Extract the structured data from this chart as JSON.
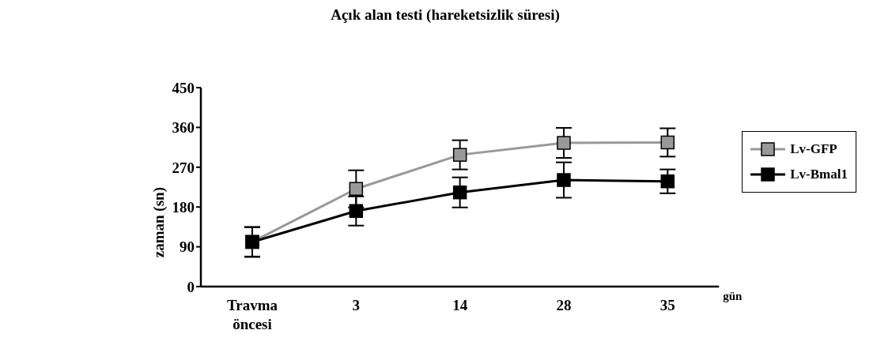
{
  "chart_data": {
    "type": "line",
    "title": "Açık alan testi (hareketsizlik süresi)",
    "xlabel": "gün",
    "ylabel": "zaman (sn)",
    "categories": [
      "Travma öncesi",
      "3",
      "14",
      "28",
      "35"
    ],
    "series": [
      {
        "name": "Lv-GFP",
        "color": "#999999",
        "values": [
          101,
          221,
          298,
          325,
          326
        ],
        "errors": [
          33,
          42,
          33,
          34,
          32
        ]
      },
      {
        "name": "Lv-Bmal1",
        "color": "#000000",
        "values": [
          101,
          171,
          213,
          241,
          238
        ],
        "errors": [
          34,
          33,
          34,
          40,
          27
        ]
      }
    ],
    "ylim": [
      0,
      450
    ],
    "yticks": [
      0,
      90,
      180,
      270,
      360,
      450
    ],
    "grid": false,
    "legend": "right",
    "marker": "square",
    "line_style": "solid"
  }
}
